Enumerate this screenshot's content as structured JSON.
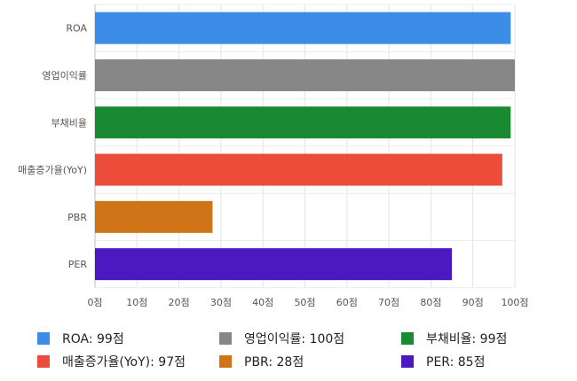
{
  "chart_data": {
    "type": "bar",
    "orientation": "horizontal",
    "categories": [
      "ROA",
      "영업이익률",
      "부채비율",
      "매출증가율(YoY)",
      "PBR",
      "PER"
    ],
    "values": [
      99,
      100,
      99,
      97,
      28,
      85
    ],
    "colors": [
      "#3b8de8",
      "#878787",
      "#1a8a32",
      "#ee4c3a",
      "#cf7518",
      "#4c18c2"
    ],
    "xlim": [
      0,
      100
    ],
    "xticks": [
      0,
      10,
      20,
      30,
      40,
      50,
      60,
      70,
      80,
      90,
      100
    ],
    "tick_suffix": "점",
    "grid": true,
    "legend_position": "bottom",
    "legend": [
      "ROA: 99점",
      "영업이익률: 100점",
      "부채비율: 99점",
      "매출증가율(YoY): 97점",
      "PBR: 28점",
      "PER: 85점"
    ]
  }
}
